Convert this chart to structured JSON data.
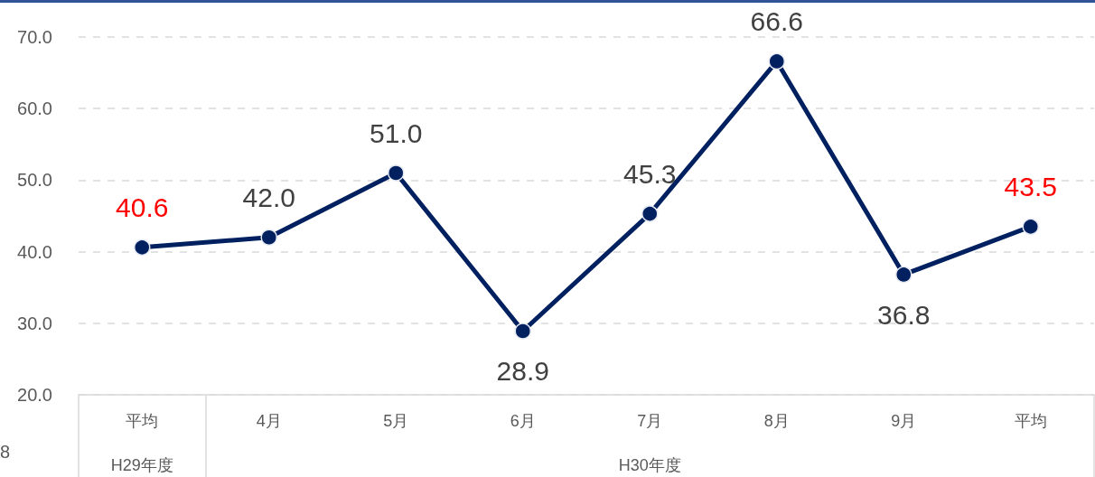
{
  "chart_data": {
    "type": "line",
    "categories": [
      "平均",
      "4月",
      "5月",
      "6月",
      "7月",
      "8月",
      "9月",
      "平均"
    ],
    "series": [
      {
        "color": "#002060",
        "values": [
          40.6,
          42.0,
          51.0,
          28.9,
          45.3,
          66.6,
          36.8,
          43.5
        ],
        "value_labels": [
          "40.6",
          "42.0",
          "51.0",
          "28.9",
          "45.3",
          "66.6",
          "36.8",
          "43.5"
        ]
      }
    ],
    "ylim": [
      20,
      70
    ],
    "yticks": [
      {
        "value": 20,
        "label": "20.0"
      },
      {
        "value": 30,
        "label": "30.0"
      },
      {
        "value": 40,
        "label": "40.0"
      },
      {
        "value": 50,
        "label": "50.0"
      },
      {
        "value": 60,
        "label": "60.0"
      },
      {
        "value": 70,
        "label": "70.0"
      }
    ],
    "grid": "y",
    "marker": "circle",
    "line_style": "solid",
    "annotations": [
      "H29年度",
      "H30年度",
      "8"
    ]
  }
}
